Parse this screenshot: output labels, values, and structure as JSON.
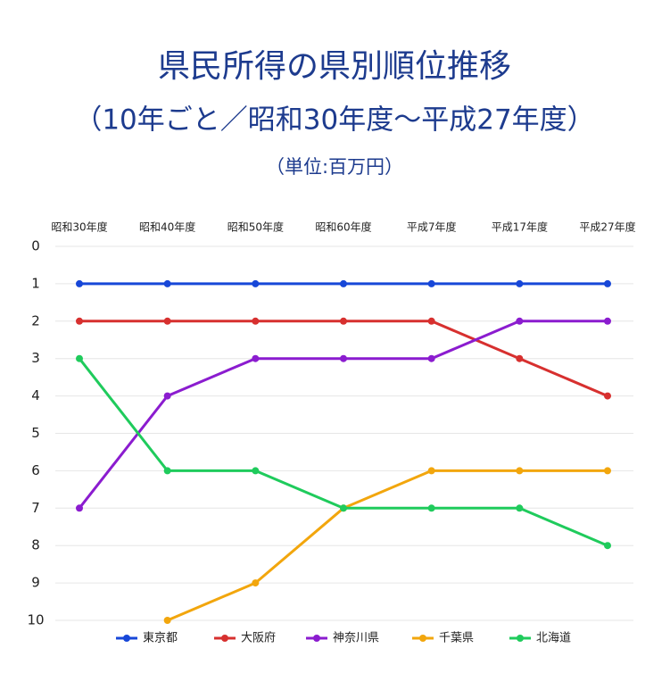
{
  "chart_data": {
    "type": "line",
    "title": "県民所得の県別順位推移",
    "subtitle": "（10年ごと／昭和30年度～平成27年度）",
    "unit_label": "（単位:百万円）",
    "categories": [
      "昭和30年度",
      "昭和40年度",
      "昭和50年度",
      "昭和60年度",
      "平成7年度",
      "平成17年度",
      "平成27年度"
    ],
    "series": [
      {
        "name": "東京都",
        "color": "#1747d8",
        "values": [
          1,
          1,
          1,
          1,
          1,
          1,
          1
        ]
      },
      {
        "name": "大阪府",
        "color": "#d7302f",
        "values": [
          2,
          2,
          2,
          2,
          2,
          3,
          4
        ]
      },
      {
        "name": "神奈川県",
        "color": "#8b1ccf",
        "values": [
          7,
          4,
          3,
          3,
          3,
          2,
          2
        ]
      },
      {
        "name": "千葉県",
        "color": "#f2a60d",
        "values": [
          null,
          10,
          9,
          7,
          6,
          6,
          6
        ]
      },
      {
        "name": "北海道",
        "color": "#1fcb5c",
        "values": [
          3,
          6,
          6,
          7,
          7,
          7,
          8
        ]
      }
    ],
    "ylim": [
      0,
      10
    ],
    "y_inverted": true,
    "yticks": [
      0,
      1,
      2,
      3,
      4,
      5,
      6,
      7,
      8,
      9,
      10
    ],
    "grid": true,
    "legend": "bottom"
  }
}
